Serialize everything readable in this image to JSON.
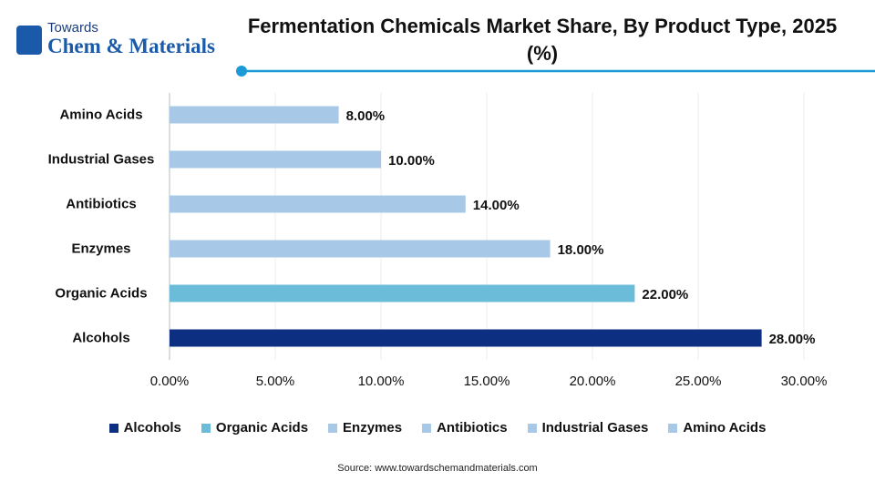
{
  "logo": {
    "top": "Towards",
    "bottom": "Chem & Materials"
  },
  "chart_data": {
    "type": "bar",
    "orientation": "horizontal",
    "title": "Fermentation Chemicals Market Share, By Product Type, 2025 (%)",
    "categories": [
      "Alcohols",
      "Organic Acids",
      "Enzymes",
      "Antibiotics",
      "Industrial Gases",
      "Amino Acids"
    ],
    "values": [
      28,
      22,
      18,
      14,
      10,
      8
    ],
    "value_labels": [
      "28.00%",
      "22.00%",
      "18.00%",
      "14.00%",
      "10.00%",
      "8.00%"
    ],
    "colors": [
      "#0d2f82",
      "#6bbcd8",
      "#a7c8e6",
      "#a7c8e6",
      "#a7c8e6",
      "#a7c8e6"
    ],
    "xlim": [
      0,
      30
    ],
    "xticks": [
      {
        "value": 0,
        "label": "0.00%"
      },
      {
        "value": 5,
        "label": "5.00%"
      },
      {
        "value": 10,
        "label": "10.00%"
      },
      {
        "value": 15,
        "label": "15.00%"
      },
      {
        "value": 20,
        "label": "20.00%"
      },
      {
        "value": 25,
        "label": "25.00%"
      },
      {
        "value": 30,
        "label": "30.00%"
      }
    ],
    "grid": true,
    "legend": "bottom",
    "source": "Source: www.towardschemandmaterials.com"
  }
}
